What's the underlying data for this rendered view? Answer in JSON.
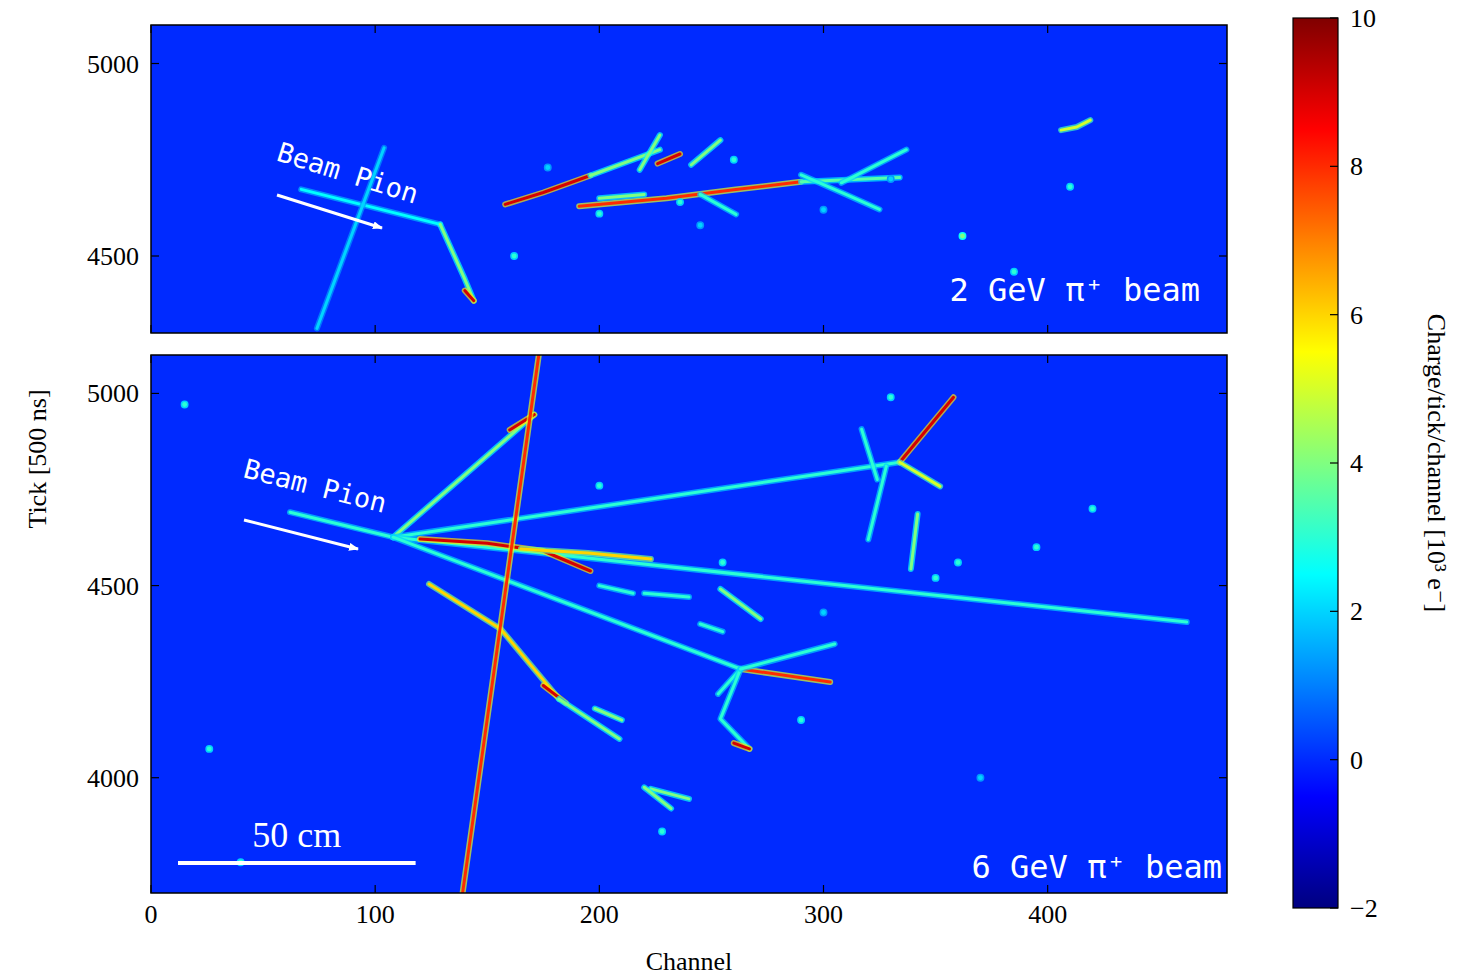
{
  "chart_data": {
    "type": "event_display",
    "xlabel": "Channel",
    "ylabel": "Tick [500 ns]",
    "colorbar": {
      "label": "Charge/tick/channel [10³ e⁻]",
      "range": [
        -2,
        10
      ],
      "ticks": [
        -2,
        0,
        2,
        4,
        6,
        8,
        10
      ],
      "background_charge": 0
    },
    "panels": [
      {
        "title": "2 GeV π⁺ beam",
        "annotation": "Beam Pion",
        "xlim": [
          0,
          480
        ],
        "ylim": [
          4300,
          5100
        ],
        "xticks": [
          0,
          100,
          200,
          300,
          400
        ],
        "yticks": [
          4500,
          5000
        ],
        "tick_labels": "y",
        "tracks": [
          {
            "x": [
              67,
              129
            ],
            "y": [
              4673,
              4582
            ],
            "charge": 2.5
          },
          {
            "x": [
              129,
              140,
              144
            ],
            "y": [
              4582,
              4440,
              4384
            ],
            "charge": 4
          },
          {
            "x": [
              140,
              144
            ],
            "y": [
              4410,
              4384
            ],
            "charge": 9
          },
          {
            "x": [
              74,
              104
            ],
            "y": [
              4312,
              4781
            ],
            "charge": 2
          },
          {
            "x": [
              158,
              175,
              196
            ],
            "y": [
              4634,
              4665,
              4709
            ],
            "charge": 9
          },
          {
            "x": [
              196,
              227
            ],
            "y": [
              4709,
              4776
            ],
            "charge": 4
          },
          {
            "x": [
              191,
              230,
              260,
              290
            ],
            "y": [
              4629,
              4650,
              4672,
              4693
            ],
            "charge": 8
          },
          {
            "x": [
              290,
              334
            ],
            "y": [
              4693,
              4704
            ],
            "charge": 3.5
          },
          {
            "x": [
              218,
              227
            ],
            "y": [
              4724,
              4814
            ],
            "charge": 4
          },
          {
            "x": [
              226,
              236
            ],
            "y": [
              4740,
              4765
            ],
            "charge": 9
          },
          {
            "x": [
              290,
              310,
              325
            ],
            "y": [
              4711,
              4660,
              4621
            ],
            "charge": 3
          },
          {
            "x": [
              245,
              261
            ],
            "y": [
              4660,
              4608
            ],
            "charge": 3
          },
          {
            "x": [
              308,
              337
            ],
            "y": [
              4690,
              4776
            ],
            "charge": 3
          },
          {
            "x": [
              406,
              413,
              419
            ],
            "y": [
              4827,
              4835,
              4853
            ],
            "charge": 5
          },
          {
            "x": [
              241,
              254
            ],
            "y": [
              4737,
              4801
            ],
            "charge": 4
          },
          {
            "x": [
              200,
              220
            ],
            "y": [
              4650,
              4660
            ],
            "charge": 4
          }
        ],
        "hits": {
          "x": [
            162,
            362,
            385,
            177,
            236,
            300,
            410,
            245,
            200,
            330,
            260
          ],
          "y": [
            4500,
            4552,
            4459,
            4730,
            4640,
            4620,
            4680,
            4580,
            4610,
            4700,
            4750
          ],
          "charge": [
            3,
            4,
            3,
            2,
            3,
            2,
            3,
            2,
            3,
            2,
            3
          ]
        }
      },
      {
        "title": "6 GeV π⁺ beam",
        "annotation": "Beam Pion",
        "scale_bar": {
          "label": "50 cm",
          "channels": 106
        },
        "xlim": [
          0,
          480
        ],
        "ylim": [
          3700,
          5100
        ],
        "xticks": [
          0,
          100,
          200,
          300,
          400
        ],
        "yticks": [
          4000,
          4500,
          5000
        ],
        "tick_labels": true,
        "tracks": [
          {
            "x": [
              62,
              108
            ],
            "y": [
              4691,
              4626
            ],
            "charge": 3
          },
          {
            "x": [
              108,
              171
            ],
            "y": [
              4626,
              4945
            ],
            "charge": 4
          },
          {
            "x": [
              160,
              171
            ],
            "y": [
              4905,
              4945
            ],
            "charge": 9
          },
          {
            "x": [
              108,
              334
            ],
            "y": [
              4626,
              4821
            ],
            "charge": 3
          },
          {
            "x": [
              334,
              358
            ],
            "y": [
              4821,
              4990
            ],
            "charge": 9
          },
          {
            "x": [
              334,
              352
            ],
            "y": [
              4821,
              4758
            ],
            "charge": 5
          },
          {
            "x": [
              328,
              320
            ],
            "y": [
              4810,
              4620
            ],
            "charge": 3
          },
          {
            "x": [
              342,
              339
            ],
            "y": [
              4686,
              4543
            ],
            "charge": 4
          },
          {
            "x": [
              108,
              462
            ],
            "y": [
              4626,
              4405
            ],
            "charge": 3
          },
          {
            "x": [
              108,
              263
            ],
            "y": [
              4626,
              4283
            ],
            "charge": 3
          },
          {
            "x": [
              263,
              303
            ],
            "y": [
              4283,
              4249
            ],
            "charge": 8
          },
          {
            "x": [
              263,
              253
            ],
            "y": [
              4283,
              4218
            ],
            "charge": 3
          },
          {
            "x": [
              263,
              254,
              267
            ],
            "y": [
              4283,
              4153,
              4075
            ],
            "charge": 3
          },
          {
            "x": [
              260,
              267
            ],
            "y": [
              4090,
              4075
            ],
            "charge": 9
          },
          {
            "x": [
              263,
              305
            ],
            "y": [
              4283,
              4348
            ],
            "charge": 3
          },
          {
            "x": [
              120,
              150,
              175,
              196
            ],
            "y": [
              4621,
              4610,
              4590,
              4538
            ],
            "charge": 9
          },
          {
            "x": [
              165,
              195,
              223
            ],
            "y": [
              4595,
              4585,
              4569
            ],
            "charge": 6
          },
          {
            "x": [
              124,
              156,
              182
            ],
            "y": [
              4504,
              4387,
              4205
            ],
            "charge": 6
          },
          {
            "x": [
              175,
              185
            ],
            "y": [
              4240,
              4195
            ],
            "charge": 9
          },
          {
            "x": [
              182,
              209
            ],
            "y": [
              4205,
              4101
            ],
            "charge": 4
          },
          {
            "x": [
              139,
              173
            ],
            "y": [
              3700,
              5100
            ],
            "charge": 8
          },
          {
            "x": [
              254,
              272
            ],
            "y": [
              4491,
              4413
            ],
            "charge": 4
          },
          {
            "x": [
              223,
              240
            ],
            "y": [
              3971,
              3945
            ],
            "charge": 4
          },
          {
            "x": [
              317,
              324
            ],
            "y": [
              4907,
              4776
            ],
            "charge": 3
          },
          {
            "x": [
              200,
              215
            ],
            "y": [
              4500,
              4480
            ],
            "charge": 3
          },
          {
            "x": [
              220,
              240
            ],
            "y": [
              4480,
              4470
            ],
            "charge": 3
          },
          {
            "x": [
              245,
              255
            ],
            "y": [
              4400,
              4380
            ],
            "charge": 3
          },
          {
            "x": [
              198,
              210
            ],
            "y": [
              4180,
              4150
            ],
            "charge": 4
          },
          {
            "x": [
              220,
              232
            ],
            "y": [
              3975,
              3920
            ],
            "charge": 4
          }
        ],
        "hits": {
          "x": [
            15,
            26,
            40,
            360,
            395,
            420,
            255,
            300,
            350,
            228,
            290,
            370,
            200,
            330
          ],
          "y": [
            4971,
            4075,
            3780,
            4560,
            4600,
            4700,
            4560,
            4430,
            4520,
            3860,
            4150,
            4000,
            4760,
            4990
          ],
          "charge": [
            3,
            3,
            3,
            3,
            3,
            3,
            3,
            2,
            3,
            3,
            3,
            2,
            3,
            3
          ]
        }
      }
    ]
  }
}
